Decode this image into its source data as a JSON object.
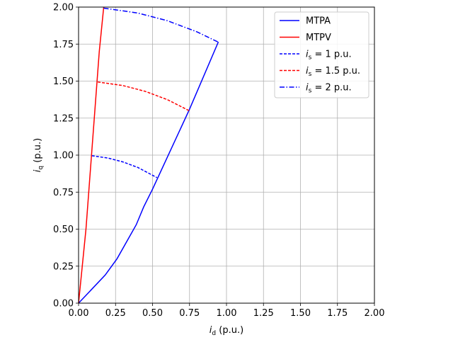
{
  "chart_data": {
    "type": "line",
    "xlabel": "id (p.u.)",
    "xlabel_main": "i",
    "xlabel_sub": "d",
    "xlabel_unit": "(p.u.)",
    "ylabel": "iq (p.u.)",
    "ylabel_main": "i",
    "ylabel_sub": "q",
    "ylabel_unit": "(p.u.)",
    "xlim": [
      0,
      2
    ],
    "ylim": [
      0,
      2
    ],
    "grid": true,
    "legend_placement": "top-right",
    "x_ticks": [
      "0.00",
      "0.25",
      "0.50",
      "0.75",
      "1.00",
      "1.25",
      "1.50",
      "1.75",
      "2.00"
    ],
    "y_ticks": [
      "0.00",
      "0.25",
      "0.50",
      "0.75",
      "1.00",
      "1.25",
      "1.50",
      "1.75",
      "2.00"
    ],
    "series": [
      {
        "name": "MTPA",
        "color": "#0000ff",
        "dash": "solid",
        "x": [
          0,
          0.18,
          0.26,
          0.39,
          0.44,
          0.5,
          0.75,
          0.945
        ],
        "y": [
          0,
          0.19,
          0.3,
          0.53,
          0.65,
          0.77,
          1.31,
          1.765
        ]
      },
      {
        "name": "MTPV",
        "color": "#ff0000",
        "dash": "solid",
        "x": [
          0,
          0.02,
          0.05,
          0.08,
          0.11,
          0.14,
          0.17
        ],
        "y": [
          0,
          0.2,
          0.5,
          0.9,
          1.3,
          1.7,
          2.0
        ]
      },
      {
        "name_main": "i",
        "name_sub": "s",
        "name_rest": " = 1 p.u.",
        "color": "#0000ff",
        "dash": "dashed",
        "x": [
          0.09,
          0.2,
          0.3,
          0.4,
          0.53
        ],
        "y": [
          0.996,
          0.98,
          0.954,
          0.917,
          0.848
        ]
      },
      {
        "name_main": "i",
        "name_sub": "s",
        "name_rest": " = 1.5 p.u.",
        "color": "#ff0000",
        "dash": "dashed",
        "x": [
          0.13,
          0.3,
          0.45,
          0.6,
          0.75
        ],
        "y": [
          1.494,
          1.47,
          1.431,
          1.375,
          1.299
        ]
      },
      {
        "name_main": "i",
        "name_sub": "s",
        "name_rest": " = 2 p.u.",
        "color": "#0000ff",
        "dash": "dashdot",
        "x": [
          0.17,
          0.4,
          0.6,
          0.8,
          0.945
        ],
        "y": [
          1.993,
          1.96,
          1.908,
          1.833,
          1.763
        ]
      }
    ]
  }
}
